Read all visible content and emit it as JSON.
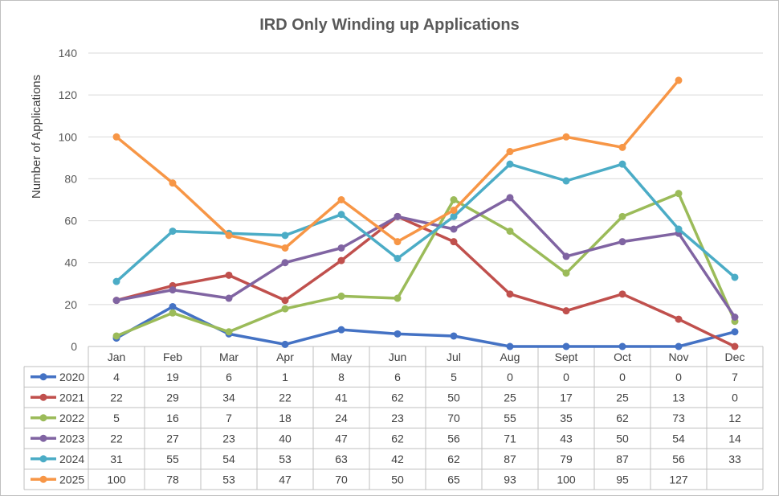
{
  "chart_data": {
    "type": "line",
    "title": "IRD Only Winding up Applications",
    "ylabel": "Number of Applications",
    "xlabel": "",
    "ylim": [
      0,
      140
    ],
    "yticks": [
      "0",
      "20",
      "40",
      "60",
      "80",
      "100",
      "120",
      "140"
    ],
    "categories": [
      "Jan",
      "Feb",
      "Mar",
      "Apr",
      "May",
      "Jun",
      "Jul",
      "Aug",
      "Sept",
      "Oct",
      "Nov",
      "Dec"
    ],
    "grid": true,
    "legend": "data-table-left",
    "series": [
      {
        "name": "2020",
        "color": "#4472C4",
        "values": [
          4,
          19,
          6,
          1,
          8,
          6,
          5,
          0,
          0,
          0,
          0,
          7
        ]
      },
      {
        "name": "2021",
        "color": "#C0504D",
        "values": [
          22,
          29,
          34,
          22,
          41,
          62,
          50,
          25,
          17,
          25,
          13,
          0
        ]
      },
      {
        "name": "2022",
        "color": "#9BBB59",
        "values": [
          5,
          16,
          7,
          18,
          24,
          23,
          70,
          55,
          35,
          62,
          73,
          12
        ]
      },
      {
        "name": "2023",
        "color": "#8064A2",
        "values": [
          22,
          27,
          23,
          40,
          47,
          62,
          56,
          71,
          43,
          50,
          54,
          14
        ]
      },
      {
        "name": "2024",
        "color": "#4BACC6",
        "values": [
          31,
          55,
          54,
          53,
          63,
          42,
          62,
          87,
          79,
          87,
          56,
          33
        ]
      },
      {
        "name": "2025",
        "color": "#F79646",
        "values": [
          100,
          78,
          53,
          47,
          70,
          50,
          65,
          93,
          100,
          95,
          127,
          null
        ]
      }
    ]
  }
}
